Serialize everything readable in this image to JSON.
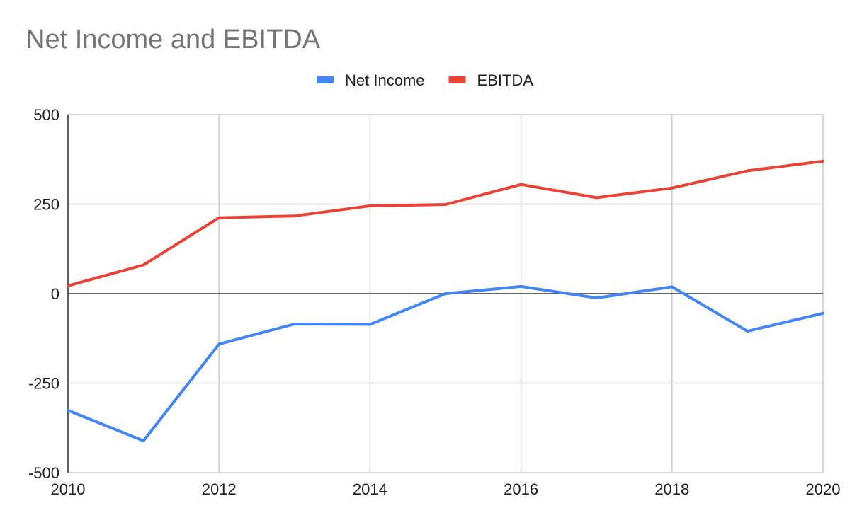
{
  "chart_data": {
    "type": "line",
    "title": "Net Income and EBITDA",
    "xlabel": "",
    "ylabel": "",
    "x": [
      2010,
      2011,
      2012,
      2013,
      2014,
      2015,
      2016,
      2017,
      2018,
      2019,
      2020
    ],
    "x_ticks": [
      2010,
      2012,
      2014,
      2016,
      2018,
      2020
    ],
    "xlim": [
      2010,
      2020
    ],
    "ylim": [
      -500,
      500
    ],
    "y_ticks": [
      -500,
      -250,
      0,
      250,
      500
    ],
    "grid": true,
    "legend_position": "top-center",
    "series": [
      {
        "name": "Net Income",
        "color": "#4285f4",
        "values": [
          -326,
          -411,
          -141,
          -85,
          -86,
          0,
          20,
          -12,
          19,
          -105,
          -55
        ]
      },
      {
        "name": "EBITDA",
        "color": "#ea4335",
        "values": [
          22,
          80,
          212,
          217,
          245,
          249,
          305,
          268,
          295,
          343,
          370
        ]
      }
    ]
  }
}
